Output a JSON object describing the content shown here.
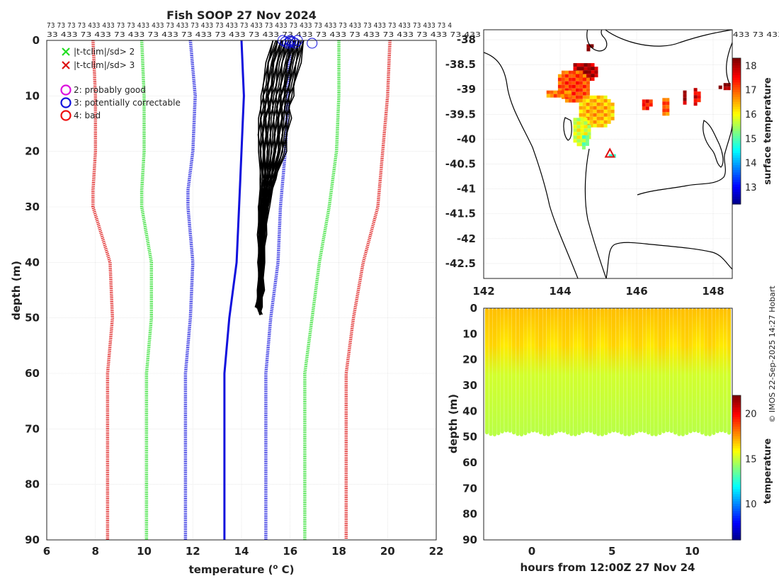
{
  "figure": {
    "title": "Fish SOOP 27 Nov 2024",
    "credit": "© IMOS 22-Sep-2025 14:27 Hobart",
    "flag_row_1": "73 73 73 73 433 433 73 73 433 433 73 433 73 433 73 433 73 433 73 433 73 433 73 433 73 433 73 433 73 433 73 433 73 4",
    "flag_row_2": "33 433 73 433 73 433 73 433 73 433 73 433 73 433 73 433 73 433 73 433 73 433 73 433 73 433 73 433 73 433 73 433 73 433 73 433 73 433 73 433 73 433 73 433"
  },
  "chart_data": [
    {
      "type": "line",
      "name": "profile",
      "xlabel": "temperature (",
      "xlabel_sup": "o",
      "xlabel_end": " C)",
      "ylabel": "depth (m)",
      "xlim": [
        6,
        22
      ],
      "ylim": [
        90,
        0
      ],
      "xticks": [
        6,
        8,
        10,
        12,
        14,
        16,
        18,
        20,
        22
      ],
      "yticks": [
        0,
        10,
        20,
        30,
        40,
        50,
        60,
        70,
        80,
        90
      ],
      "grid": true,
      "legend": [
        {
          "label": "|t-tclim|/sd> 2",
          "marker": "x",
          "color": "#22dd22"
        },
        {
          "label": "|t-tclim|/sd> 3",
          "marker": "x",
          "color": "#dd1111"
        },
        {
          "label": "2: probably good",
          "marker": "o",
          "color": "#dd11dd"
        },
        {
          "label": "3: potentially correctable",
          "marker": "o",
          "color": "#1111dd"
        },
        {
          "label": "4: bad",
          "marker": "o",
          "color": "#ee1111"
        }
      ],
      "series": [
        {
          "name": "clim -3sd",
          "color": "#dd1111",
          "style": "dotted",
          "depth": [
            0,
            10,
            20,
            27,
            30,
            40,
            50,
            60,
            70,
            80,
            90
          ],
          "temp": [
            7.9,
            8.0,
            8.0,
            7.9,
            7.9,
            8.6,
            8.7,
            8.5,
            8.5,
            8.5,
            8.5
          ]
        },
        {
          "name": "clim -2sd",
          "color": "#22dd22",
          "style": "dotted",
          "depth": [
            0,
            10,
            20,
            27,
            30,
            40,
            50,
            60,
            70,
            80,
            90
          ],
          "temp": [
            9.9,
            10.0,
            10.0,
            9.9,
            9.9,
            10.3,
            10.3,
            10.1,
            10.1,
            10.1,
            10.1
          ]
        },
        {
          "name": "clim -1sd",
          "color": "#1111dd",
          "style": "dotted",
          "depth": [
            0,
            10,
            20,
            27,
            30,
            40,
            50,
            60,
            70,
            80,
            90
          ],
          "temp": [
            11.9,
            12.1,
            12.0,
            11.8,
            11.8,
            12.0,
            11.9,
            11.7,
            11.7,
            11.7,
            11.7
          ]
        },
        {
          "name": "clim mean",
          "color": "#1111dd",
          "style": "solid",
          "depth": [
            0,
            10,
            20,
            30,
            40,
            50,
            60,
            70,
            80,
            90
          ],
          "temp": [
            14.0,
            14.1,
            14.0,
            13.9,
            13.8,
            13.5,
            13.3,
            13.3,
            13.3,
            13.3
          ]
        },
        {
          "name": "clim +1sd",
          "color": "#1111dd",
          "style": "dotted",
          "depth": [
            0,
            10,
            20,
            30,
            40,
            50,
            60,
            70,
            80,
            90
          ],
          "temp": [
            16.0,
            15.9,
            15.8,
            15.6,
            15.5,
            15.2,
            15.0,
            15.0,
            15.0,
            15.0
          ]
        },
        {
          "name": "clim +2sd",
          "color": "#22dd22",
          "style": "dotted",
          "depth": [
            0,
            10,
            20,
            30,
            40,
            50,
            60,
            70,
            80,
            90
          ],
          "temp": [
            18.0,
            18.0,
            17.9,
            17.6,
            17.2,
            16.9,
            16.6,
            16.6,
            16.6,
            16.6
          ]
        },
        {
          "name": "clim +3sd",
          "color": "#dd1111",
          "style": "dotted",
          "depth": [
            0,
            10,
            20,
            30,
            40,
            50,
            60,
            70,
            80,
            90
          ],
          "temp": [
            20.1,
            20.0,
            19.8,
            19.6,
            19.0,
            18.6,
            18.3,
            18.3,
            18.3,
            18.3
          ]
        }
      ],
      "profiles": {
        "color": "#000000",
        "depth": [
          0,
          4,
          8,
          10,
          12,
          14,
          17,
          20,
          25,
          30,
          35,
          40,
          45,
          48,
          49.5
        ],
        "temp_left": [
          15.3,
          15.0,
          14.9,
          14.8,
          14.8,
          14.7,
          14.7,
          14.7,
          14.8,
          14.7,
          14.7,
          14.7,
          14.7,
          14.6,
          14.7
        ],
        "temp_right": [
          16.6,
          16.4,
          16.2,
          16.1,
          16.0,
          16.0,
          15.9,
          15.8,
          15.4,
          15.1,
          15.0,
          14.9,
          14.9,
          14.8,
          14.8
        ]
      },
      "surface_flags": {
        "color": "#1111dd",
        "depth": 0,
        "temps": [
          15.7,
          15.8,
          15.9,
          16.0,
          16.1,
          16.2,
          16.3,
          16.0,
          16.9
        ]
      }
    },
    {
      "type": "heatmap",
      "name": "map",
      "xlim": [
        142,
        148.5
      ],
      "ylim": [
        -42.8,
        -37.8
      ],
      "xticks": [
        142,
        144,
        146,
        148
      ],
      "yticks": [
        -38,
        -38.5,
        -39,
        -39.5,
        -40,
        -40.5,
        -41,
        -41.5,
        -42,
        -42.5
      ],
      "colorbar": {
        "label": "surface temperature",
        "min": 12.3,
        "max": 18.3,
        "ticks": [
          13,
          14,
          15,
          16,
          17,
          18
        ]
      },
      "track_marker": {
        "lon": 145.3,
        "lat": -40.3,
        "color": "#dd1111"
      },
      "sst_patches": [
        {
          "lon": 144.6,
          "lat": -38.6,
          "rx": 0.35,
          "ry": 0.2,
          "temp": 18.2
        },
        {
          "lon": 144.3,
          "lat": -38.9,
          "rx": 0.45,
          "ry": 0.35,
          "temp": 17.3
        },
        {
          "lon": 143.9,
          "lat": -39.05,
          "rx": 0.35,
          "ry": 0.1,
          "temp": 17.0
        },
        {
          "lon": 144.9,
          "lat": -39.4,
          "rx": 0.5,
          "ry": 0.35,
          "temp": 16.6
        },
        {
          "lon": 144.5,
          "lat": -39.8,
          "rx": 0.25,
          "ry": 0.3,
          "temp": 16.0
        },
        {
          "lon": 144.6,
          "lat": -40.0,
          "rx": 0.12,
          "ry": 0.15,
          "temp": 15.4
        },
        {
          "lon": 146.2,
          "lat": -39.25,
          "rx": 0.15,
          "ry": 0.12,
          "temp": 17.6
        },
        {
          "lon": 146.7,
          "lat": -39.3,
          "rx": 0.12,
          "ry": 0.2,
          "temp": 17.2
        },
        {
          "lon": 147.2,
          "lat": -39.1,
          "rx": 0.08,
          "ry": 0.15,
          "temp": 18.2
        },
        {
          "lon": 147.5,
          "lat": -39.1,
          "rx": 0.1,
          "ry": 0.2,
          "temp": 17.8
        },
        {
          "lon": 148.3,
          "lat": -38.9,
          "rx": 0.12,
          "ry": 0.1,
          "temp": 18.3
        },
        {
          "lon": 148.1,
          "lat": -38.9,
          "rx": 0.05,
          "ry": 0.05,
          "temp": 18.3
        },
        {
          "lon": 145.3,
          "lat": -40.3,
          "rx": 0.12,
          "ry": 0.07,
          "temp": 15.1
        },
        {
          "lon": 144.7,
          "lat": -38.1,
          "rx": 0.1,
          "ry": 0.08,
          "temp": 18.3
        }
      ]
    },
    {
      "type": "scatter",
      "name": "time-depth",
      "xlabel": "hours from 12:00Z 27 Nov 24",
      "ylabel": "depth (m)",
      "xlim": [
        -3,
        12.5
      ],
      "ylim": [
        90,
        0
      ],
      "xticks": [
        0,
        5,
        10
      ],
      "yticks": [
        0,
        10,
        20,
        30,
        40,
        50,
        60,
        70,
        80,
        90
      ],
      "colorbar": {
        "label": "temperature",
        "min": 6.0,
        "max": 22.0,
        "ticks": [
          10,
          15,
          20
        ]
      },
      "cast_start": -2.8,
      "cast_end": 12.3,
      "cast_count": 64,
      "max_depth": 49,
      "temp_surface": 17.0,
      "temp_bottom": 14.9,
      "thermocline_depth": 18
    }
  ]
}
